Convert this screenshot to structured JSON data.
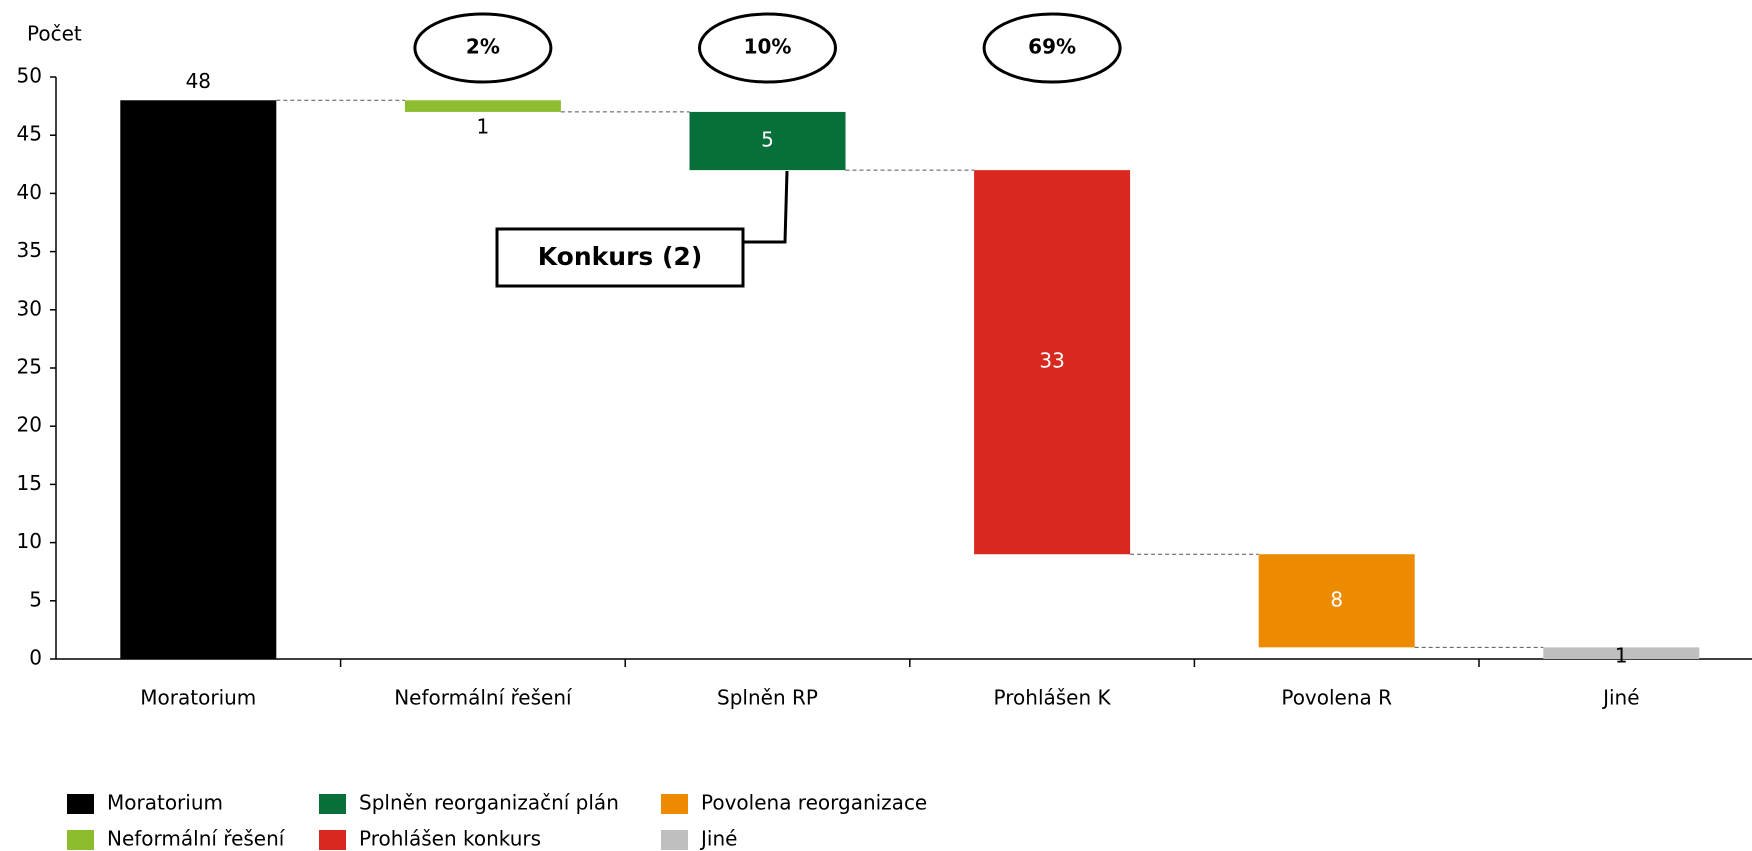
{
  "chart_data": {
    "type": "waterfall",
    "y_label": "Počet",
    "categories": [
      "Moratorium",
      "Neformální řešení",
      "Splněn RP",
      "Prohlášen K",
      "Povolena R",
      "Jiné"
    ],
    "values": [
      48,
      1,
      5,
      33,
      8,
      1
    ],
    "colors": [
      "#000000",
      "#8cbd2e",
      "#066f3a",
      "#d9291e",
      "#ec8b00",
      "#bfbfbf"
    ],
    "legend": [
      "Moratorium",
      "Neformální řešení",
      "Splněn reorganizační plán",
      "Prohlášen konkurs",
      "Povolena reorganizace",
      "Jiné"
    ],
    "percent_labels": [
      "2%",
      "10%",
      "69%"
    ],
    "callout": "Konkurs (2)",
    "ylim": [
      0,
      50
    ],
    "yticks": [
      0,
      5,
      10,
      15,
      20,
      25,
      30,
      35,
      40,
      45,
      50
    ]
  }
}
